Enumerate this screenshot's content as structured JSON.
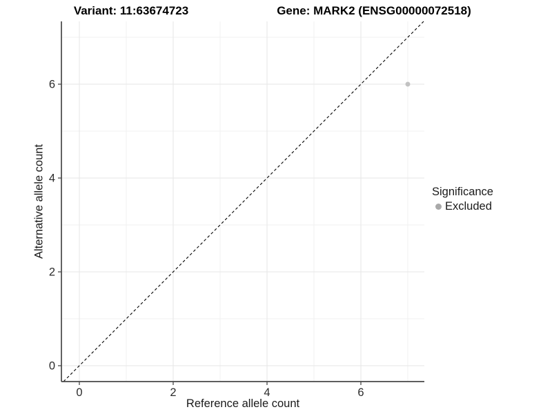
{
  "chart_data": {
    "type": "scatter",
    "titles": [
      "Variant: 11:63674723",
      "Gene: MARK2 (ENSG00000072518)"
    ],
    "xlabel": "Reference allele count",
    "ylabel": "Alternative allele count",
    "x_ticks": [
      0,
      2,
      4,
      6
    ],
    "y_ticks": [
      0,
      2,
      4,
      6
    ],
    "x_minor_gridlines": [
      1,
      3,
      5,
      7
    ],
    "y_minor_gridlines": [
      1,
      3,
      5,
      7
    ],
    "xlim": [
      -0.38,
      7.35
    ],
    "ylim": [
      -0.34,
      7.34
    ],
    "grid": true,
    "legend_position": "right",
    "reference_line": {
      "kind": "identity y=x",
      "style": "dashed",
      "color": "#000000"
    },
    "series": [
      {
        "name": "Excluded",
        "color": "#c2c2c2",
        "points": [
          {
            "x": 7,
            "y": 6
          }
        ]
      }
    ],
    "legend": {
      "title": "Significance",
      "entries": [
        {
          "label": "Excluded",
          "color": "#a9a9a9"
        }
      ]
    },
    "colors": {
      "grid_major": "#e6e6e6",
      "grid_minor": "#f1f1f1",
      "axis_line": "#474747",
      "tick_text": "#2b2b2b",
      "background": "#ffffff"
    }
  }
}
